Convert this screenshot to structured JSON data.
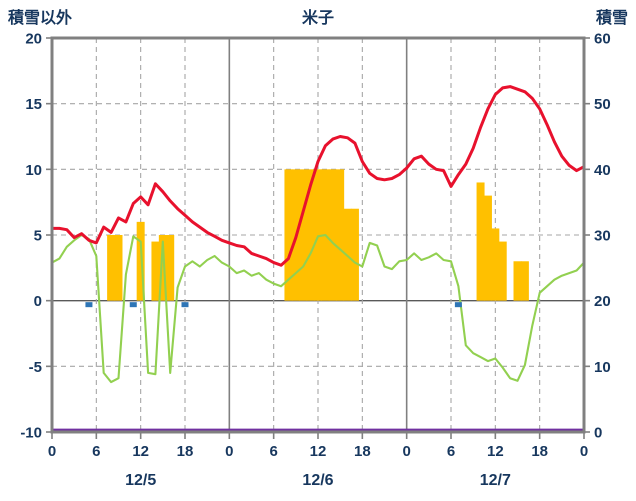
{
  "chart_data": {
    "type": "combo",
    "title": "米子",
    "left_axis": {
      "label": "積雪以外",
      "min": -10,
      "max": 20,
      "ticks": [
        20,
        15,
        10,
        5,
        0,
        -5,
        -10
      ]
    },
    "right_axis": {
      "label": "積雪",
      "min": 0,
      "max": 60,
      "ticks": [
        60,
        50,
        40,
        30,
        20,
        10,
        0
      ]
    },
    "x_axis": {
      "total_hours": 72,
      "tick_hours": [
        0,
        6,
        12,
        18,
        24,
        30,
        36,
        42,
        48,
        54,
        60,
        66,
        72
      ],
      "tick_labels": [
        "0",
        "6",
        "12",
        "18",
        "0",
        "6",
        "12",
        "18",
        "0",
        "6",
        "12",
        "18",
        "0"
      ],
      "day_boundary_hours": [
        24,
        48
      ],
      "day_labels": [
        {
          "label": "12/5",
          "hour": 12
        },
        {
          "label": "12/6",
          "hour": 36
        },
        {
          "label": "12/7",
          "hour": 60
        }
      ]
    },
    "series": {
      "red_line": {
        "axis": "left",
        "values": [
          5.5,
          5.5,
          5.4,
          4.8,
          5.1,
          4.6,
          4.4,
          5.6,
          5.2,
          6.3,
          6.0,
          7.4,
          7.9,
          7.3,
          8.9,
          8.3,
          7.6,
          7.0,
          6.5,
          6.0,
          5.6,
          5.2,
          4.9,
          4.6,
          4.4,
          4.2,
          4.1,
          3.6,
          3.4,
          3.2,
          2.9,
          2.7,
          3.2,
          4.8,
          6.8,
          8.8,
          10.6,
          11.8,
          12.3,
          12.5,
          12.4,
          12.0,
          10.6,
          9.7,
          9.3,
          9.2,
          9.3,
          9.6,
          10.1,
          10.8,
          11.0,
          10.4,
          10.0,
          9.9,
          8.7,
          9.6,
          10.4,
          11.6,
          13.2,
          14.6,
          15.7,
          16.2,
          16.3,
          16.1,
          15.9,
          15.4,
          14.6,
          13.4,
          12.1,
          11.0,
          10.3,
          9.9,
          10.2
        ]
      },
      "green_line": {
        "axis": "left",
        "values": [
          2.9,
          3.2,
          4.1,
          4.6,
          5.0,
          4.7,
          3.4,
          -5.5,
          -6.2,
          -5.9,
          2.0,
          4.9,
          4.5,
          -5.5,
          -5.6,
          4.5,
          -5.5,
          1.0,
          2.6,
          3.0,
          2.6,
          3.1,
          3.4,
          2.9,
          2.6,
          2.1,
          2.3,
          1.9,
          2.1,
          1.6,
          1.3,
          1.1,
          1.6,
          2.1,
          2.6,
          3.6,
          4.9,
          5.0,
          4.4,
          3.9,
          3.4,
          2.9,
          2.6,
          4.4,
          4.2,
          2.6,
          2.4,
          3.0,
          3.1,
          3.6,
          3.1,
          3.3,
          3.6,
          3.1,
          3.0,
          1.1,
          -3.4,
          -4.0,
          -4.3,
          -4.6,
          -4.4,
          -5.1,
          -5.9,
          -6.1,
          -4.9,
          -1.9,
          0.6,
          1.1,
          1.6,
          1.9,
          2.1,
          2.3,
          2.9
        ]
      },
      "orange_bars": {
        "axis": "left",
        "points": [
          [
            8,
            5
          ],
          [
            9,
            5
          ],
          [
            12,
            6
          ],
          [
            14,
            4.5
          ],
          [
            15,
            5
          ],
          [
            16,
            5
          ],
          [
            32,
            10
          ],
          [
            33,
            10
          ],
          [
            34,
            10
          ],
          [
            35,
            10
          ],
          [
            36,
            10
          ],
          [
            37,
            10
          ],
          [
            38,
            10
          ],
          [
            39,
            10
          ],
          [
            40,
            7
          ],
          [
            41,
            7
          ],
          [
            58,
            9
          ],
          [
            59,
            8
          ],
          [
            60,
            5.5
          ],
          [
            61,
            4.5
          ],
          [
            63,
            3
          ],
          [
            64,
            3
          ]
        ]
      },
      "blue_markers": {
        "axis": "left",
        "hours": [
          5,
          11,
          18,
          55
        ]
      },
      "purple_line": {
        "axis": "right",
        "constant_value": 0
      }
    },
    "colors": {
      "red_line": "#e8112d",
      "green_line": "#92d050",
      "orange_bars": "#ffc000",
      "blue_markers": "#2e75b6",
      "purple_line": "#7030a0",
      "frame": "#808080",
      "grid_dashed": "#a6a6a6",
      "grid_solid": "#808080",
      "zero_line": "#595959",
      "text": "#17375e"
    }
  }
}
